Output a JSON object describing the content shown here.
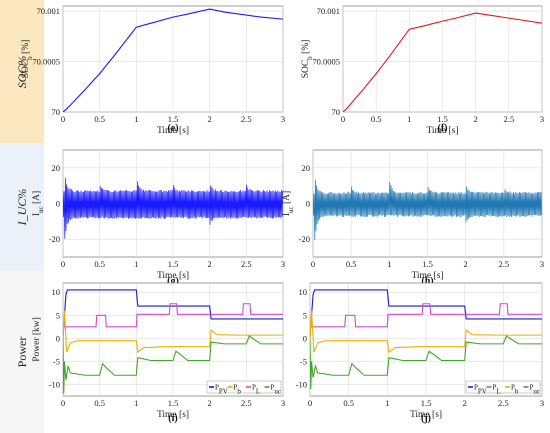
{
  "row_labels": [
    "SOC%",
    "I_UC%",
    "Power"
  ],
  "colors": {
    "band1": "#fbe7c0",
    "band2": "#eaf1f8",
    "band3": "#f6f6f6",
    "blue": "#1a1aff",
    "red": "#e01818",
    "steel": "#1f77b4",
    "ppv": "#1a1ad0",
    "pb": "#e8b000",
    "pl": "#d04ad0",
    "puc": "#40a828"
  },
  "chart_data": [
    {
      "id": "e",
      "panel_label": "(e)",
      "type": "line",
      "xlabel": "Time [s]",
      "ylabel": "SOC_b [%]",
      "xlim": [
        0,
        3
      ],
      "ylim": [
        70,
        70.00105
      ],
      "xticks": [
        0,
        0.5,
        1,
        1.5,
        2,
        2.5,
        3
      ],
      "yticks": [
        70,
        70.0005,
        70.001
      ],
      "ytick_labels": [
        "70",
        "70.0005",
        "70.001"
      ],
      "series": [
        {
          "color": "#1a1aff",
          "x": [
            0,
            0.05,
            0.3,
            0.5,
            0.7,
            1.0,
            1.2,
            1.5,
            1.7,
            2.0,
            2.2,
            2.5,
            2.7,
            3.0
          ],
          "y": [
            70,
            70.00003,
            70.00022,
            70.00038,
            70.00056,
            70.00084,
            70.00088,
            70.00094,
            70.00097,
            70.00102,
            70.00099,
            70.00096,
            70.00094,
            70.00092
          ]
        }
      ]
    },
    {
      "id": "f",
      "panel_label": "(f)",
      "type": "line",
      "xlabel": "Time [s]",
      "ylabel": "SOC_b [%]",
      "xlim": [
        0,
        3
      ],
      "ylim": [
        70,
        70.00105
      ],
      "xticks": [
        0,
        0.5,
        1,
        1.5,
        2,
        2.5,
        3
      ],
      "yticks": [
        70,
        70.0005,
        70.001
      ],
      "ytick_labels": [
        "70",
        "70.0005",
        "70.001"
      ],
      "series": [
        {
          "color": "#e01818",
          "x": [
            0,
            0.05,
            0.3,
            0.5,
            0.7,
            1.0,
            1.2,
            1.5,
            1.7,
            2.0,
            2.2,
            2.5,
            2.7,
            3.0
          ],
          "y": [
            70,
            70.00003,
            70.00022,
            70.00038,
            70.00055,
            70.00082,
            70.00085,
            70.0009,
            70.00093,
            70.00098,
            70.00096,
            70.00093,
            70.00091,
            70.00088
          ]
        }
      ]
    },
    {
      "id": "g",
      "panel_label": "(g)",
      "type": "line",
      "xlabel": "Time [s]",
      "ylabel": "I_uc [A]",
      "xlim": [
        0,
        3
      ],
      "ylim": [
        -30,
        30
      ],
      "xticks": [
        0,
        0.5,
        1,
        1.5,
        2,
        2.5,
        3
      ],
      "yticks": [
        -20,
        0,
        20
      ],
      "band": {
        "color": "#1a1aff",
        "upper": 7,
        "lower": -8
      },
      "spikes": [
        {
          "t": 0.02,
          "peak": 18,
          "trough": -22
        },
        {
          "t": 0.5,
          "peak": 11,
          "trough": -4
        },
        {
          "t": 1.0,
          "peak": 15,
          "trough": -3
        },
        {
          "t": 1.5,
          "peak": 11,
          "trough": -4
        },
        {
          "t": 2.0,
          "peak": 12,
          "trough": -12
        },
        {
          "t": 2.5,
          "peak": 11,
          "trough": -4
        }
      ]
    },
    {
      "id": "h",
      "panel_label": "(h)",
      "type": "line",
      "xlabel": "Time [s]",
      "ylabel": "I_uc [A]",
      "xlim": [
        0,
        3
      ],
      "ylim": [
        -30,
        30
      ],
      "xticks": [
        0,
        0.5,
        1,
        1.5,
        2,
        2.5,
        3
      ],
      "yticks": [
        -20,
        0,
        20
      ],
      "band": {
        "color": "#1f77b4",
        "upper": 6,
        "lower": -7
      },
      "spikes": [
        {
          "t": 0.02,
          "peak": 16,
          "trough": -22
        },
        {
          "t": 0.5,
          "peak": 10,
          "trough": -4
        },
        {
          "t": 1.0,
          "peak": 14,
          "trough": -3
        },
        {
          "t": 1.5,
          "peak": 10,
          "trough": -4
        },
        {
          "t": 2.0,
          "peak": 11,
          "trough": -11
        },
        {
          "t": 2.5,
          "peak": 10,
          "trough": -4
        }
      ]
    },
    {
      "id": "i",
      "panel_label": "(i)",
      "type": "line",
      "xlabel": "Time [s]",
      "ylabel": "Power [kw]",
      "xlim": [
        0,
        3
      ],
      "ylim": [
        -12.5,
        12
      ],
      "xticks": [
        0,
        0.5,
        1,
        1.5,
        2,
        2.5,
        3
      ],
      "yticks": [
        -10,
        -5,
        0,
        5,
        10
      ],
      "legend": {
        "position": "bottom-right",
        "entries": [
          "P_PV",
          "P_b",
          "P_L",
          "P_uc"
        ]
      },
      "series": [
        {
          "name": "P_PV",
          "color": "#1a1ad0",
          "x": [
            0,
            0.02,
            0.04,
            0.06,
            0.1,
            1.0,
            1.02,
            2.0,
            2.02,
            3.0
          ],
          "y": [
            0,
            5,
            9.5,
            10.5,
            10.5,
            10.5,
            7.0,
            7.0,
            4.2,
            4.2
          ]
        },
        {
          "name": "P_L",
          "color": "#d04ad0",
          "x": [
            0,
            0.05,
            0.45,
            0.46,
            0.58,
            0.59,
            1.0,
            1.01,
            1.45,
            1.46,
            1.55,
            1.56,
            2.0,
            2.01,
            2.45,
            2.46,
            2.55,
            2.56,
            3.0
          ],
          "y": [
            2.5,
            2.5,
            2.5,
            5.0,
            5.0,
            2.5,
            2.5,
            5.2,
            5.2,
            7.5,
            7.5,
            5.2,
            5.2,
            5.2,
            5.2,
            7.5,
            7.5,
            5.2,
            5.2
          ]
        },
        {
          "name": "P_b",
          "color": "#e8b000",
          "x": [
            0,
            0.02,
            0.05,
            0.1,
            0.2,
            0.4,
            1.0,
            1.02,
            1.1,
            1.4,
            2.0,
            2.02,
            2.1,
            2.4,
            3.0
          ],
          "y": [
            0,
            6,
            -3,
            -1,
            -0.5,
            -0.5,
            -0.5,
            -3.0,
            -2.0,
            -1.8,
            -1.8,
            1.8,
            0.8,
            0.7,
            0.7
          ]
        },
        {
          "name": "P_uc",
          "color": "#40a828",
          "x": [
            0,
            0.01,
            0.02,
            0.04,
            0.07,
            0.1,
            0.3,
            0.5,
            0.54,
            0.6,
            0.7,
            1.0,
            1.02,
            1.2,
            1.5,
            1.54,
            1.6,
            1.7,
            2.0,
            2.02,
            2.2,
            2.5,
            2.54,
            2.6,
            2.7,
            3.0
          ],
          "y": [
            0,
            -12,
            -5,
            -9,
            -6,
            -7.5,
            -8,
            -8,
            -5.5,
            -6.5,
            -8,
            -8,
            -4.2,
            -4.8,
            -4.8,
            -2.8,
            -3.5,
            -4.8,
            -4.8,
            -0.8,
            -1.2,
            -1.2,
            0.5,
            -0.2,
            -1.2,
            -1.2
          ]
        }
      ]
    },
    {
      "id": "j",
      "panel_label": "(j)",
      "type": "line",
      "xlabel": "Time [s]",
      "ylabel": "",
      "xlim": [
        0,
        3
      ],
      "ylim": [
        -12.5,
        12
      ],
      "xticks": [
        0,
        0.5,
        1,
        1.5,
        2,
        2.5,
        3
      ],
      "yticks": [
        -10,
        -5,
        0,
        5,
        10
      ],
      "legend": {
        "position": "bottom-right",
        "entries": [
          "P_PV",
          "P_L",
          "P_b",
          "P_uc"
        ]
      },
      "series": [
        {
          "name": "P_PV",
          "color": "#1a1ad0",
          "x": [
            0,
            0.02,
            0.04,
            0.06,
            0.1,
            1.0,
            1.02,
            2.0,
            2.02,
            3.0
          ],
          "y": [
            0,
            5,
            9.5,
            10.5,
            10.5,
            10.5,
            7.0,
            7.0,
            4.2,
            4.2
          ]
        },
        {
          "name": "P_L",
          "color": "#d04ad0",
          "x": [
            0,
            0.05,
            0.45,
            0.46,
            0.58,
            0.59,
            1.0,
            1.01,
            1.45,
            1.46,
            1.55,
            1.56,
            2.0,
            2.01,
            2.45,
            2.46,
            2.55,
            2.56,
            3.0
          ],
          "y": [
            2.5,
            2.5,
            2.5,
            5.0,
            5.0,
            2.5,
            2.5,
            5.2,
            5.2,
            7.5,
            7.5,
            5.2,
            5.2,
            5.2,
            5.2,
            7.5,
            7.5,
            5.2,
            5.2
          ]
        },
        {
          "name": "P_b",
          "color": "#e8b000",
          "x": [
            0,
            0.02,
            0.05,
            0.1,
            0.2,
            0.4,
            1.0,
            1.02,
            1.1,
            1.4,
            2.0,
            2.02,
            2.1,
            2.4,
            3.0
          ],
          "y": [
            0,
            6,
            -3,
            -1,
            -0.5,
            -0.5,
            -0.5,
            -3.0,
            -2.0,
            -1.8,
            -1.8,
            1.8,
            0.8,
            0.7,
            0.7
          ]
        },
        {
          "name": "P_uc",
          "color": "#40a828",
          "x": [
            0,
            0.01,
            0.02,
            0.04,
            0.07,
            0.1,
            0.3,
            0.5,
            0.54,
            0.6,
            0.7,
            1.0,
            1.02,
            1.2,
            1.5,
            1.54,
            1.6,
            1.7,
            2.0,
            2.02,
            2.2,
            2.5,
            2.54,
            2.6,
            2.7,
            3.0
          ],
          "y": [
            0,
            -11,
            -5,
            -8.5,
            -6,
            -7.5,
            -8,
            -8,
            -5.5,
            -6.5,
            -8,
            -8,
            -4.2,
            -4.8,
            -4.8,
            -2.8,
            -3.5,
            -4.8,
            -4.8,
            -0.8,
            -1.2,
            -1.2,
            0.5,
            -0.2,
            -1.2,
            -1.2
          ]
        }
      ]
    }
  ]
}
